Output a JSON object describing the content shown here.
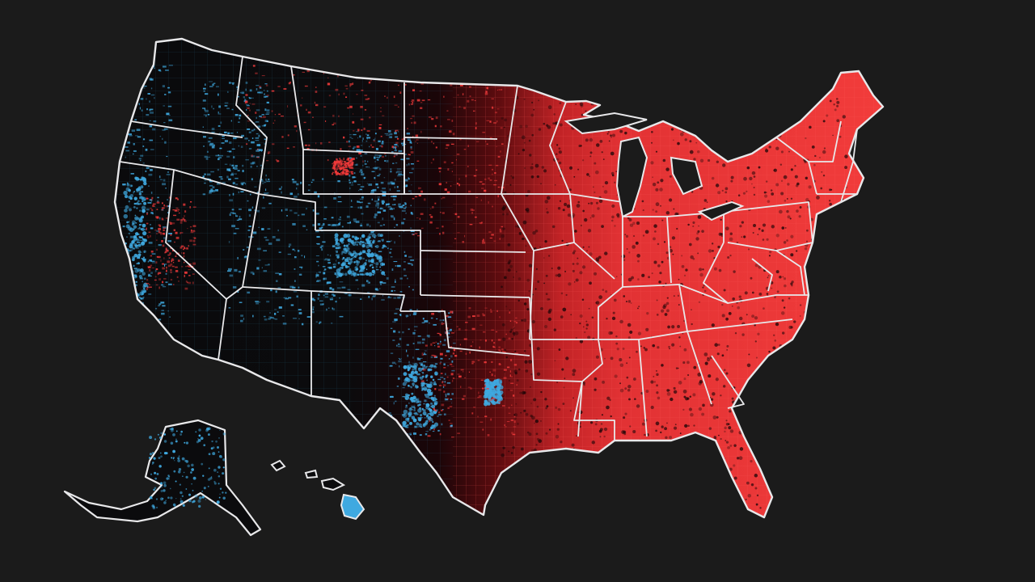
{
  "map": {
    "background_color": "#1b1b1b",
    "border_color": "#e8e8ea",
    "land_dark_color": "#0c0c0e",
    "west_accent_color": "#3fa9e0",
    "east_fill_color": "#f03a3a",
    "east_dark_color": "#1a0507",
    "regions": [
      {
        "name": "contiguous-us"
      },
      {
        "name": "alaska"
      },
      {
        "name": "hawaii"
      }
    ]
  }
}
